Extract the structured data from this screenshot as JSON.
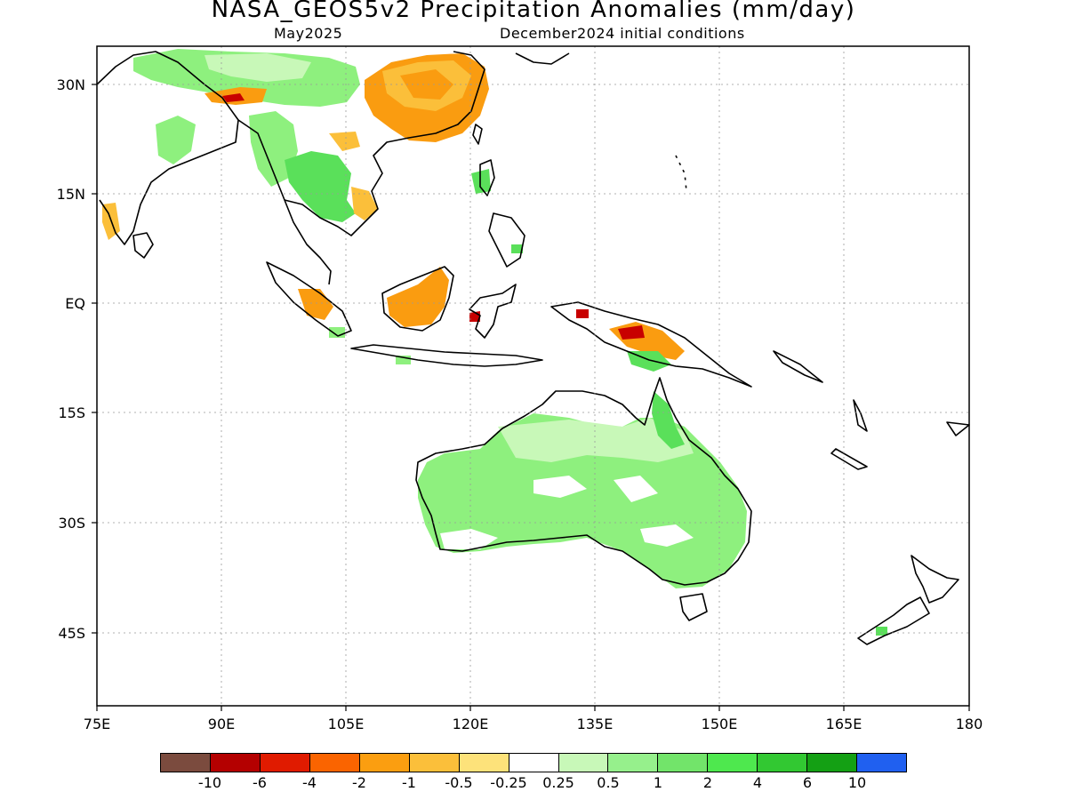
{
  "title": "NASA_GEOS5v2 Precipitation Anomalies (mm/day)",
  "subtitle_left": "May2025",
  "subtitle_right": "December2024 initial conditions",
  "map": {
    "projection": "lat-lon",
    "lon_range": [
      75,
      180
    ],
    "lat_range": [
      -50,
      35
    ],
    "grid": "dotted",
    "x_tick_labels": [
      "75E",
      "90E",
      "105E",
      "120E",
      "135E",
      "150E",
      "165E",
      "180"
    ],
    "y_tick_labels": [
      "30N",
      "15N",
      "EQ",
      "15S",
      "30S",
      "45S"
    ]
  },
  "colorbar": {
    "colors": [
      "#7b4b3e",
      "#b40000",
      "#e01b00",
      "#fa6400",
      "#fb9e10",
      "#fbbf3a",
      "#fde27a",
      "#ffffff",
      "#c8f8b8",
      "#96f08c",
      "#72e46a",
      "#4ee84e",
      "#32c832",
      "#14a014",
      "#2060f0"
    ],
    "labels": [
      "-10",
      "-6",
      "-4",
      "-2",
      "-1",
      "-0.5",
      "-0.25",
      "0.25",
      "0.5",
      "1",
      "2",
      "4",
      "6",
      "10"
    ]
  },
  "legend": {
    "colors": {
      "dark_red": "#c80000",
      "red_orange": "#f05000",
      "orange": "#fa9c10",
      "light_orange": "#fbbf3a",
      "light_green": "#c8f8b8",
      "mid_green": "#8ef07e",
      "green": "#5ae05a"
    }
  }
}
